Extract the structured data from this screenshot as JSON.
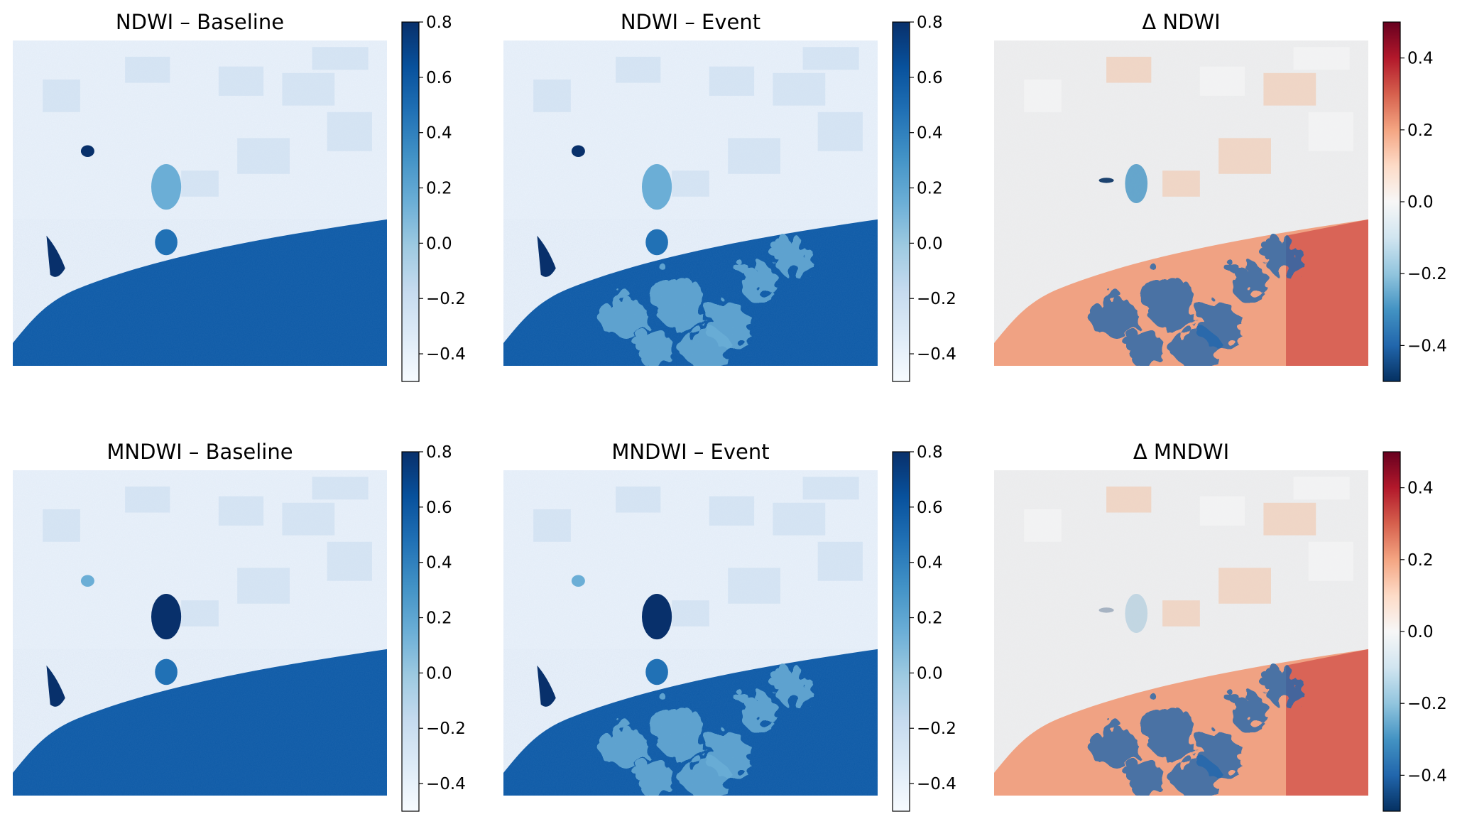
{
  "chart_data": [
    {
      "type": "heatmap",
      "title": "NDWI – Baseline",
      "scene": "baseline",
      "colormap": "Blues",
      "vmin": -0.5,
      "vmax": 0.8,
      "colorbar_ticks": [
        -0.4,
        -0.2,
        0.0,
        0.2,
        0.4,
        0.6,
        0.8
      ],
      "colorbar_tick_labels": [
        "−0.4",
        "−0.2",
        "0.0",
        "0.2",
        "0.4",
        "0.6",
        "0.8"
      ]
    },
    {
      "type": "heatmap",
      "title": "NDWI – Event",
      "scene": "event",
      "colormap": "Blues",
      "vmin": -0.5,
      "vmax": 0.8,
      "colorbar_ticks": [
        -0.4,
        -0.2,
        0.0,
        0.2,
        0.4,
        0.6,
        0.8
      ],
      "colorbar_tick_labels": [
        "−0.4",
        "−0.2",
        "0.0",
        "0.2",
        "0.4",
        "0.6",
        "0.8"
      ]
    },
    {
      "type": "heatmap",
      "title": "Δ NDWI",
      "scene": "delta",
      "colormap": "RdBu_r",
      "vmin": -0.5,
      "vmax": 0.5,
      "colorbar_ticks": [
        -0.4,
        -0.2,
        0.0,
        0.2,
        0.4
      ],
      "colorbar_tick_labels": [
        "−0.4",
        "−0.2",
        "0.0",
        "0.2",
        "0.4"
      ]
    },
    {
      "type": "heatmap",
      "title": "MNDWI – Baseline",
      "scene": "baseline-m",
      "colormap": "Blues",
      "vmin": -0.5,
      "vmax": 0.8,
      "colorbar_ticks": [
        -0.4,
        -0.2,
        0.0,
        0.2,
        0.4,
        0.6,
        0.8
      ],
      "colorbar_tick_labels": [
        "−0.4",
        "−0.2",
        "0.0",
        "0.2",
        "0.4",
        "0.6",
        "0.8"
      ]
    },
    {
      "type": "heatmap",
      "title": "MNDWI – Event",
      "scene": "event-m",
      "colormap": "Blues",
      "vmin": -0.5,
      "vmax": 0.8,
      "colorbar_ticks": [
        -0.4,
        -0.2,
        0.0,
        0.2,
        0.4,
        0.6,
        0.8
      ],
      "colorbar_tick_labels": [
        "−0.4",
        "−0.2",
        "0.0",
        "0.2",
        "0.4",
        "0.6",
        "0.8"
      ]
    },
    {
      "type": "heatmap",
      "title": "Δ MNDWI",
      "scene": "delta-m",
      "colormap": "RdBu_r",
      "vmin": -0.5,
      "vmax": 0.5,
      "colorbar_ticks": [
        -0.4,
        -0.2,
        0.0,
        0.2,
        0.4
      ],
      "colorbar_tick_labels": [
        "−0.4",
        "−0.2",
        "0.0",
        "0.2",
        "0.4"
      ]
    }
  ],
  "colors": {
    "blues_light": "#f7fbff",
    "blues_dark": "#08306b",
    "rdbu_red": "#67001f",
    "rdbu_white": "#f7f7f7",
    "rdbu_blue": "#053061"
  }
}
